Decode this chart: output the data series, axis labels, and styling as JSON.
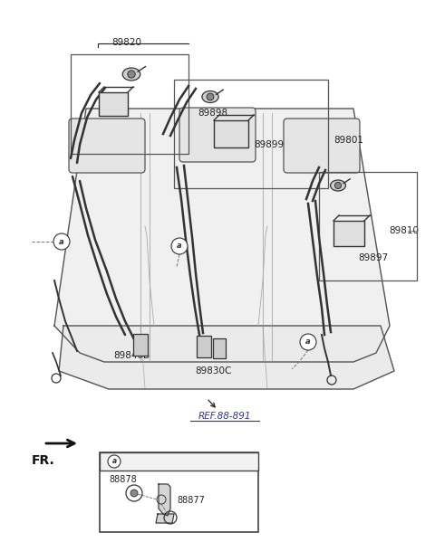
{
  "bg_color": "#ffffff",
  "fig_width": 4.8,
  "fig_height": 5.99,
  "dpi": 100,
  "label_89820": "89820",
  "label_89898": "89898",
  "label_89801": "89801",
  "label_89899": "89899",
  "label_89810": "89810",
  "label_89897": "89897",
  "label_89840B": "89840B",
  "label_89830C": "89830C",
  "label_ref": "REF.88-891",
  "label_88878": "88878",
  "label_88877": "88877",
  "label_fr": "FR.",
  "line_color": "#333333",
  "text_color": "#222222",
  "ref_color": "#333399",
  "seat_fill": "#f0f0f0",
  "seat_line": "#555555",
  "box_fill": "#e8e8e8"
}
